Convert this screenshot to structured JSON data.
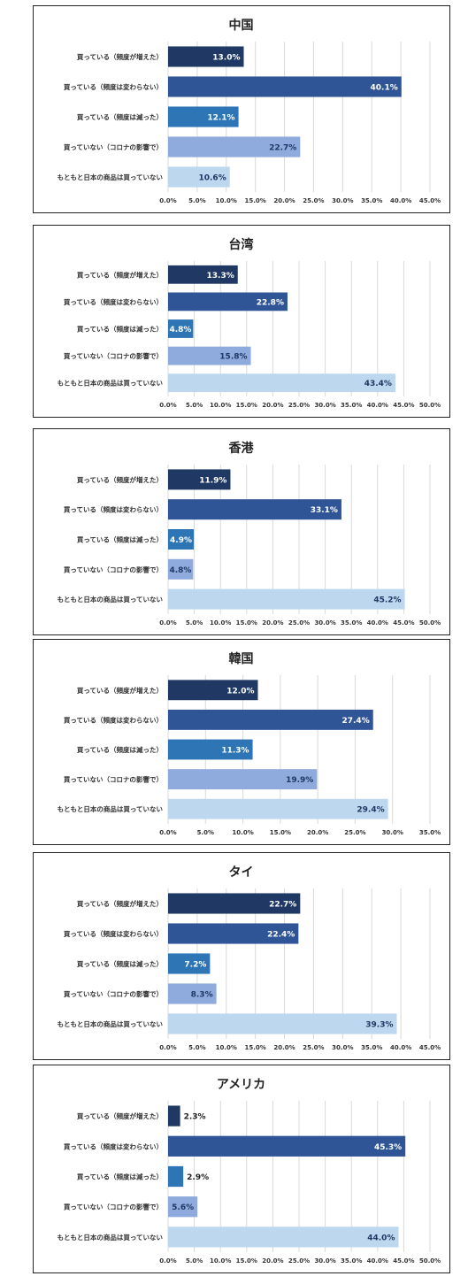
{
  "categories": [
    "買っている（頻度が増えた）",
    "買っている（頻度は変わらない）",
    "買っている（頻度は減った）",
    "買っていない（コロナの影響で）",
    "もともと日本の商品は買っていない"
  ],
  "colors": [
    "#1f3864",
    "#2f5597",
    "#2e75b6",
    "#8faadc",
    "#bdd7ee"
  ],
  "footer": "",
  "chart_data": [
    {
      "type": "bar",
      "orientation": "horizontal",
      "title": "中国",
      "categories": [
        "買っている（頻度が増えた）",
        "買っている（頻度は変わらない）",
        "買っている（頻度は減った）",
        "買っていない（コロナの影響で）",
        "もともと日本の商品は買っていない"
      ],
      "values": [
        13.0,
        40.1,
        12.1,
        22.7,
        10.6
      ],
      "value_labels": [
        "13.0%",
        "40.1%",
        "12.1%",
        "22.7%",
        "10.6%"
      ],
      "xlim": [
        0,
        45
      ],
      "ticks": [
        "0.0%",
        "5.0%",
        "10.0%",
        "15.0%",
        "20.0%",
        "25.0%",
        "30.0%",
        "35.0%",
        "40.0%",
        "45.0%"
      ],
      "grid": true
    },
    {
      "type": "bar",
      "orientation": "horizontal",
      "title": "台湾",
      "categories": [
        "買っている（頻度が増えた）",
        "買っている（頻度は変わらない）",
        "買っている（頻度は減った）",
        "買っていない（コロナの影響で）",
        "もともと日本の商品は買っていない"
      ],
      "values": [
        13.3,
        22.8,
        4.8,
        15.8,
        43.4
      ],
      "value_labels": [
        "13.3%",
        "22.8%",
        "4.8%",
        "15.8%",
        "43.4%"
      ],
      "xlim": [
        0,
        50
      ],
      "ticks": [
        "0.0%",
        "5.0%",
        "10.0%",
        "15.0%",
        "20.0%",
        "25.0%",
        "30.0%",
        "35.0%",
        "40.0%",
        "45.0%",
        "50.0%"
      ],
      "grid": true
    },
    {
      "type": "bar",
      "orientation": "horizontal",
      "title": "香港",
      "categories": [
        "買っている（頻度が増えた）",
        "買っている（頻度は変わらない）",
        "買っている（頻度は減った）",
        "買っていない（コロナの影響で）",
        "もともと日本の商品は買っていない"
      ],
      "values": [
        11.9,
        33.1,
        4.9,
        4.8,
        45.2
      ],
      "value_labels": [
        "11.9%",
        "33.1%",
        "4.9%",
        "4.8%",
        "45.2%"
      ],
      "xlim": [
        0,
        50
      ],
      "ticks": [
        "0.0%",
        "5.0%",
        "10.0%",
        "15.0%",
        "20.0%",
        "25.0%",
        "30.0%",
        "35.0%",
        "40.0%",
        "45.0%",
        "50.0%"
      ],
      "grid": true
    },
    {
      "type": "bar",
      "orientation": "horizontal",
      "title": "韓国",
      "categories": [
        "買っている（頻度が増えた）",
        "買っている（頻度は変わらない）",
        "買っている（頻度は減った）",
        "買っていない（コロナの影響で）",
        "もともと日本の商品は買っていない"
      ],
      "values": [
        12.0,
        27.4,
        11.3,
        19.9,
        29.4
      ],
      "value_labels": [
        "12.0%",
        "27.4%",
        "11.3%",
        "19.9%",
        "29.4%"
      ],
      "xlim": [
        0,
        35
      ],
      "ticks": [
        "0.0%",
        "5.0%",
        "10.0%",
        "15.0%",
        "20.0%",
        "25.0%",
        "30.0%",
        "35.0%"
      ],
      "grid": true
    },
    {
      "type": "bar",
      "orientation": "horizontal",
      "title": "タイ",
      "categories": [
        "買っている（頻度が増えた）",
        "買っている（頻度は変わらない）",
        "買っている（頻度は減った）",
        "買っていない（コロナの影響で）",
        "もともと日本の商品は買っていない"
      ],
      "values": [
        22.7,
        22.4,
        7.2,
        8.3,
        39.3
      ],
      "value_labels": [
        "22.7%",
        "22.4%",
        "7.2%",
        "8.3%",
        "39.3%"
      ],
      "xlim": [
        0,
        45
      ],
      "ticks": [
        "0.0%",
        "5.0%",
        "10.0%",
        "15.0%",
        "20.0%",
        "25.0%",
        "30.0%",
        "35.0%",
        "40.0%",
        "45.0%"
      ],
      "grid": true
    },
    {
      "type": "bar",
      "orientation": "horizontal",
      "title": "アメリカ",
      "categories": [
        "買っている（頻度が増えた）",
        "買っている（頻度は変わらない）",
        "買っている（頻度は減った）",
        "買っていない（コロナの影響で）",
        "もともと日本の商品は買っていない"
      ],
      "values": [
        2.3,
        45.3,
        2.9,
        5.6,
        44.0
      ],
      "value_labels": [
        "2.3%",
        "45.3%",
        "2.9%",
        "5.6%",
        "44.0%"
      ],
      "xlim": [
        0,
        50
      ],
      "ticks": [
        "0.0%",
        "5.0%",
        "10.0%",
        "15.0%",
        "20.0%",
        "25.0%",
        "30.0%",
        "35.0%",
        "40.0%",
        "45.0%",
        "50.0%"
      ],
      "grid": true
    }
  ]
}
